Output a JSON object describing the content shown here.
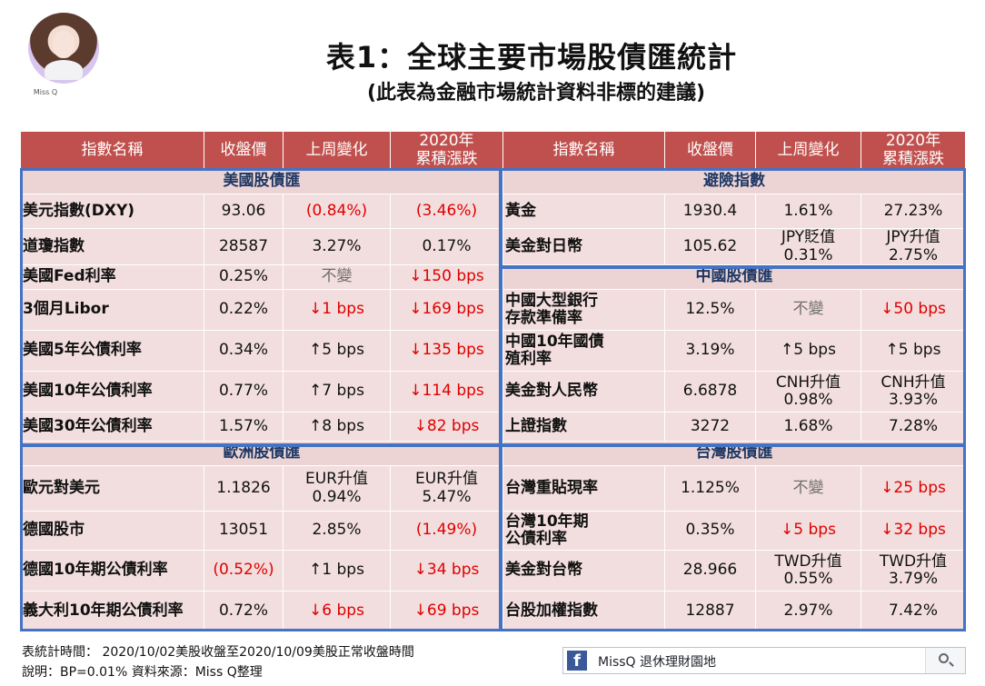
{
  "title": "表1：全球主要市場股債匯統計",
  "subtitle": "(此表為金融市場統計資料非標的建議)",
  "author": "Miss Q",
  "headers": [
    "指數名稱",
    "收盤價",
    "上周變化",
    "2020年\n累積漲跌"
  ],
  "left": {
    "sections": [
      {
        "title": "美國股債匯",
        "rows": [
          {
            "name": "美元指數(DXY)",
            "close": "93.06",
            "weekly": "(0.84%)",
            "ytd": "(3.46%)"
          },
          {
            "name": "道瓊指數",
            "close": "28587",
            "weekly": "3.27%",
            "ytd": "0.17%"
          },
          {
            "name": "美國Fed利率",
            "close": "0.25%",
            "weekly": "不變",
            "ytd": "↓150 bps"
          },
          {
            "name": "3個月Libor",
            "close": "0.22%",
            "weekly": "↓1 bps",
            "ytd": "↓169 bps"
          },
          {
            "name": "美國5年公債利率",
            "close": "0.34%",
            "weekly": "↑5 bps",
            "ytd": "↓135 bps"
          },
          {
            "name": "美國10年公債利率",
            "close": "0.77%",
            "weekly": "↑7 bps",
            "ytd": "↓114 bps"
          },
          {
            "name": "美國30年公債利率",
            "close": "1.57%",
            "weekly": "↑8 bps",
            "ytd": "↓82 bps"
          }
        ]
      },
      {
        "title": "歐洲股債匯",
        "rows": [
          {
            "name": "歐元對美元",
            "close": "1.1826",
            "weekly": "EUR升值\n0.94%",
            "ytd": "EUR升值\n5.47%"
          },
          {
            "name": "德國股市",
            "close": "13051",
            "weekly": "2.85%",
            "ytd": "(1.49%)"
          },
          {
            "name": "德國10年期公債利率",
            "close": "(0.52%)",
            "weekly": "↑1 bps",
            "ytd": "↓34 bps"
          },
          {
            "name": "義大利10年期公債利率",
            "close": "0.72%",
            "weekly": "↓6 bps",
            "ytd": "↓69 bps"
          }
        ]
      }
    ]
  },
  "right": {
    "sections": [
      {
        "title": "避險指數",
        "rows": [
          {
            "name": "黃金",
            "close": "1930.4",
            "weekly": "1.61%",
            "ytd": "27.23%"
          },
          {
            "name": "美金對日幣",
            "close": "105.62",
            "weekly": "JPY貶值\n0.31%",
            "ytd": "JPY升值\n2.75%"
          }
        ]
      },
      {
        "title": "中國股債匯",
        "rows": [
          {
            "name": "中國大型銀行\n存款準備率",
            "close": "12.5%",
            "weekly": "不變",
            "ytd": "↓50 bps"
          },
          {
            "name": "中國10年國債\n殖利率",
            "close": "3.19%",
            "weekly": "↑5 bps",
            "ytd": "↑5 bps"
          },
          {
            "name": "美金對人民幣",
            "close": "6.6878",
            "weekly": "CNH升值\n0.98%",
            "ytd": "CNH升值\n3.93%"
          },
          {
            "name": "上證指數",
            "close": "3272",
            "weekly": "1.68%",
            "ytd": "7.28%"
          }
        ]
      },
      {
        "title": "台灣股債匯",
        "rows": [
          {
            "name": "台灣重貼現率",
            "close": "1.125%",
            "weekly": "不變",
            "ytd": "↓25 bps"
          },
          {
            "name": "台灣10年期\n公債利率",
            "close": "0.35%",
            "weekly": "↓5 bps",
            "ytd": "↓32 bps"
          },
          {
            "name": "美金對台幣",
            "close": "28.966",
            "weekly": "TWD升值\n0.55%",
            "ytd": "TWD升值\n3.79%"
          },
          {
            "name": "台股加權指數",
            "close": "12887",
            "weekly": "2.97%",
            "ytd": "7.42%"
          }
        ]
      }
    ]
  },
  "footer": {
    "line1": "表統計時間： 2020/10/02美股收盤至2020/10/09美股正常收盤時間",
    "line2": "說明：BP=0.01% 資料來源：Miss Q整理"
  },
  "facebook": {
    "logo": "f",
    "label": "MissQ 退休理財園地"
  },
  "colors": {
    "header_bg": "#c0504d",
    "cell_bg": "#f2dede",
    "border": "#4472c4",
    "negative": "#e00000",
    "neutral": "#6e6e6e"
  }
}
